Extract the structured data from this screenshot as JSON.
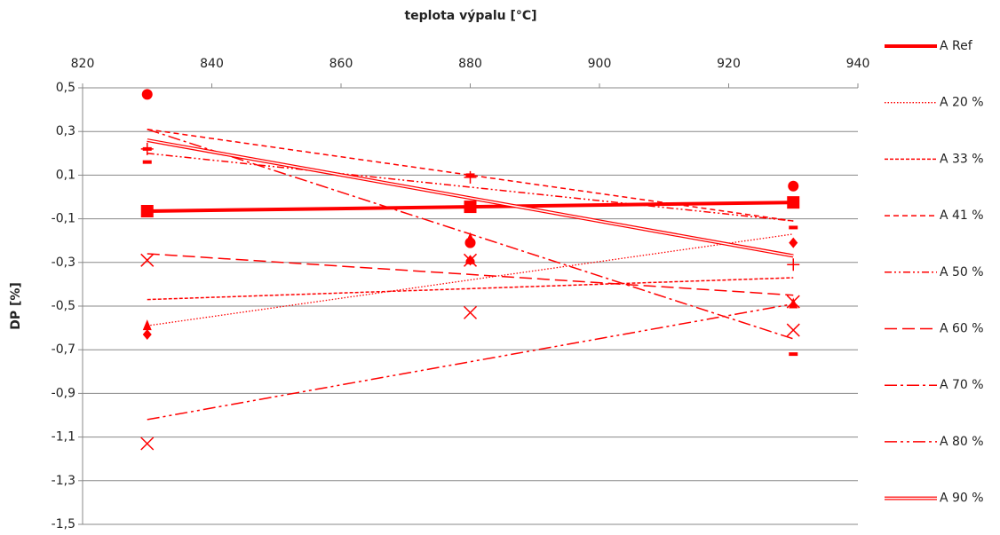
{
  "chart_data": {
    "type": "scatter",
    "title": "teplota výpalu [°C]",
    "y_label": "DP [%]",
    "x": [
      830,
      880,
      930
    ],
    "xlim": [
      820,
      940
    ],
    "xticks": [
      820,
      840,
      860,
      880,
      900,
      920,
      940
    ],
    "ylim": [
      -1.5,
      0.5
    ],
    "yticks": [
      {
        "value": -1.5,
        "label": "-1,5"
      },
      {
        "value": -1.3,
        "label": "-1,3"
      },
      {
        "value": -1.1,
        "label": "-1,1"
      },
      {
        "value": -0.9,
        "label": "-0,9"
      },
      {
        "value": -0.7,
        "label": "-0,7"
      },
      {
        "value": -0.5,
        "label": "-0,5"
      },
      {
        "value": -0.3,
        "label": "-0,3"
      },
      {
        "value": -0.1,
        "label": "-0,1"
      },
      {
        "value": 0.1,
        "label": "0,1"
      },
      {
        "value": 0.3,
        "label": "0,3"
      },
      {
        "value": 0.5,
        "label": "0,5"
      }
    ],
    "grid": true,
    "legend": "right",
    "series": [
      {
        "name": "A Ref",
        "color": "#ff0000",
        "marker": "square",
        "line_style": "thick",
        "values": [
          -0.065,
          -0.045,
          -0.025
        ],
        "trend": [
          -0.065,
          -0.025
        ]
      },
      {
        "name": "A 20 %",
        "color": "#ff0000",
        "marker": "diamond",
        "line_style": "dotted",
        "values": [
          -0.63,
          -0.29,
          -0.21
        ],
        "trend": [
          -0.59,
          -0.17
        ]
      },
      {
        "name": "A 33 %",
        "color": "#ff0000",
        "marker": "triangle",
        "line_style": "short-dash",
        "values": [
          -0.59,
          -0.19,
          -0.49
        ],
        "trend": [
          -0.47,
          -0.37
        ]
      },
      {
        "name": "A 41 %",
        "color": "#ff0000",
        "marker": "circle",
        "line_style": "dash",
        "values": [
          0.47,
          -0.21,
          0.05
        ],
        "trend": [
          0.31,
          -0.11
        ]
      },
      {
        "name": "A 50 %",
        "color": "#ff0000",
        "marker": "dash",
        "line_style": "dash-dot-dot",
        "values": [
          0.16,
          0.1,
          -0.14
        ],
        "trend": [
          0.2,
          -0.11
        ]
      },
      {
        "name": "A 60 %",
        "color": "#ff0000",
        "marker": "x",
        "line_style": "long-dash",
        "values": [
          -0.29,
          -0.29,
          -0.61
        ],
        "trend": [
          -0.26,
          -0.45
        ]
      },
      {
        "name": "A 70 %",
        "color": "#ff0000",
        "marker": "dash",
        "line_style": "long-dash-dot",
        "values": [
          0.22,
          -0.3,
          -0.72
        ],
        "trend": [
          0.31,
          -0.65
        ]
      },
      {
        "name": "A 80 %",
        "color": "#ff0000",
        "marker": "x",
        "line_style": "long-dash-dot-dot",
        "values": [
          -1.13,
          -0.53,
          -0.48
        ],
        "trend": [
          -1.02,
          -0.49
        ]
      },
      {
        "name": "A 90 %",
        "color": "#ff0000",
        "marker": "plus",
        "line_style": "double",
        "values": [
          0.22,
          0.09,
          -0.31
        ],
        "trend": [
          0.26,
          -0.27
        ]
      }
    ]
  }
}
